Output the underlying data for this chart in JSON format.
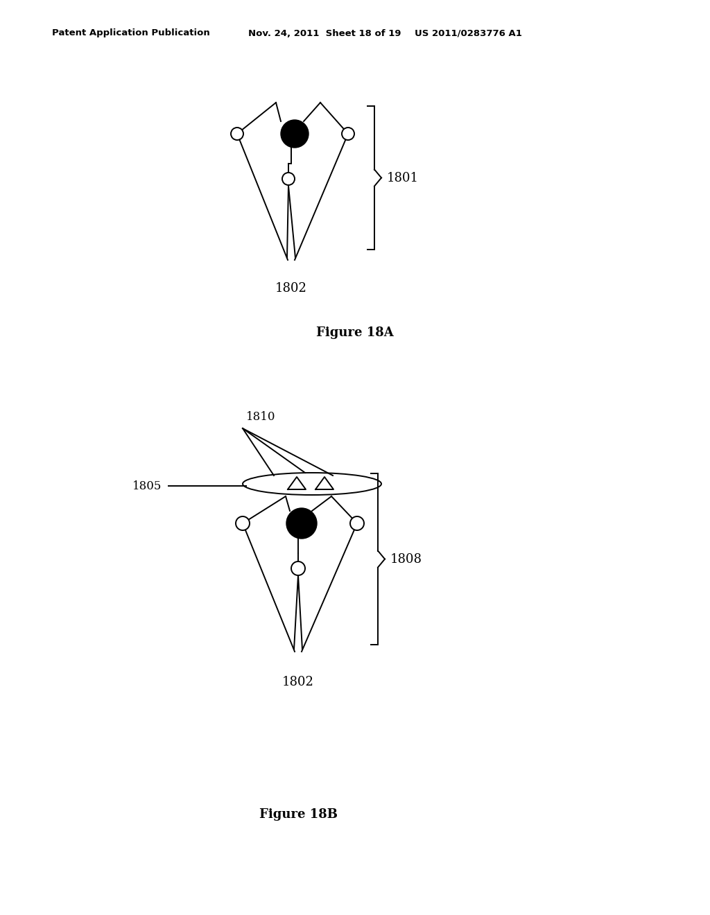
{
  "bg_color": "#ffffff",
  "header_text": "Patent Application Publication",
  "header_date": "Nov. 24, 2011  Sheet 18 of 19",
  "header_patent": "US 2011/0283776 A1",
  "fig18a_label": "Figure 18A",
  "fig18b_label": "Figure 18B",
  "label_1801": "1801",
  "label_1802_a": "1802",
  "label_1802_b": "1802",
  "label_1805": "1805",
  "label_1808": "1808",
  "label_1810": "1810",
  "lw": 1.4
}
